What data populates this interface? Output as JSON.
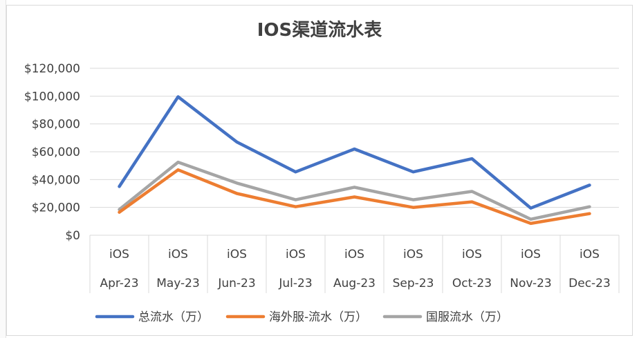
{
  "chart_data": {
    "type": "line",
    "title": "IOS渠道流水表",
    "xlabel": "",
    "ylabel": "",
    "ylim": [
      0,
      120000
    ],
    "yticks": [
      0,
      20000,
      40000,
      60000,
      80000,
      100000,
      120000
    ],
    "ytick_labels": [
      "$0",
      "$20,000",
      "$40,000",
      "$60,000",
      "$80,000",
      "$100,000",
      "$120,000"
    ],
    "grid": true,
    "legend_position": "bottom",
    "category_group": "iOS",
    "categories": [
      "Apr-23",
      "May-23",
      "Jun-23",
      "Jul-23",
      "Aug-23",
      "Sep-23",
      "Oct-23",
      "Nov-23",
      "Dec-23"
    ],
    "series": [
      {
        "name": "总流水（万）",
        "color": "#4472c4",
        "values": [
          35000,
          99500,
          67000,
          45500,
          62000,
          45500,
          55000,
          19500,
          36000
        ]
      },
      {
        "name": "海外服-流水（万）",
        "color": "#ed7d31",
        "values": [
          16500,
          47000,
          30000,
          20500,
          27500,
          20000,
          24000,
          8500,
          15500
        ]
      },
      {
        "name": "国服流水（万）",
        "color": "#a5a5a5",
        "values": [
          18500,
          52500,
          37500,
          25500,
          34500,
          25500,
          31500,
          11500,
          20500
        ]
      }
    ]
  }
}
